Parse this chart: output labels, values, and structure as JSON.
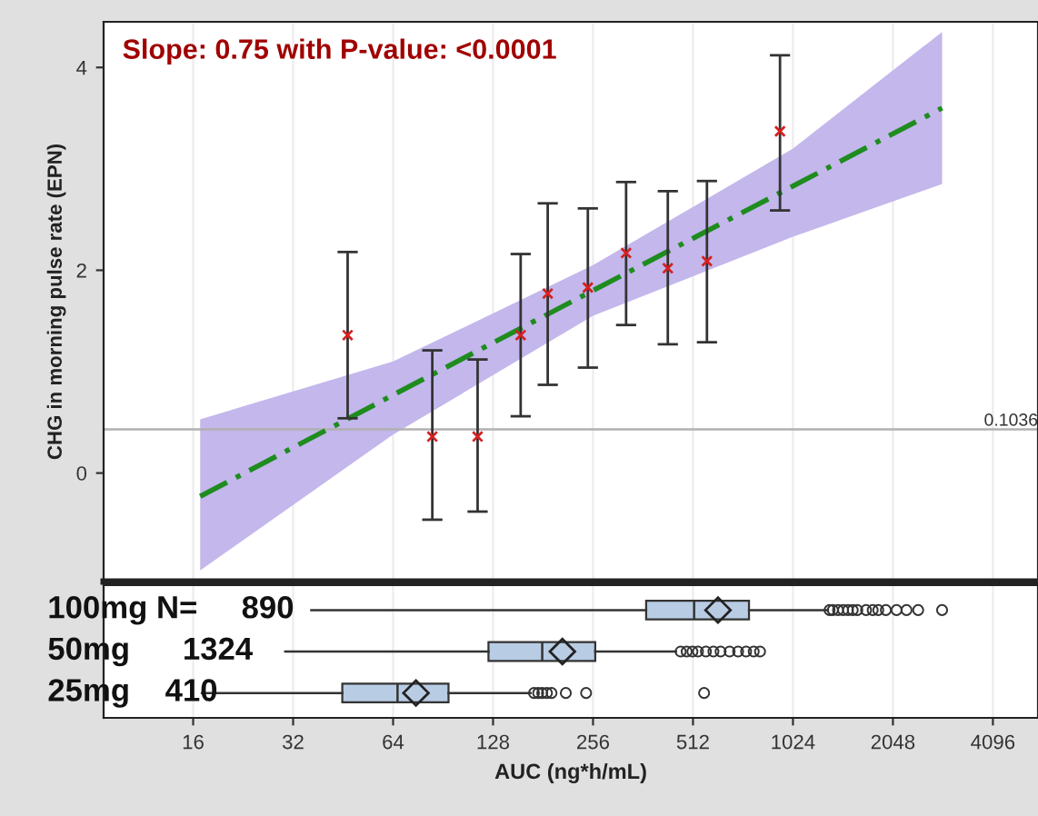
{
  "chart_data": [
    {
      "type": "scatter",
      "ylabel": "CHG in morning pulse rate (EPN)",
      "annotations": [
        "Slope: 0.75 with P-value: <0.0001",
        {
          "text": "0.1036",
          "x": 5600,
          "y": 0.43
        }
      ],
      "log": "x",
      "xlim": [
        8.6,
        5600
      ],
      "xticks": [
        16,
        32,
        64,
        128,
        256,
        512,
        1024,
        2048,
        4096
      ],
      "ylim": [
        -1.07,
        4.45
      ],
      "yticks": [
        0,
        2,
        4
      ],
      "grid": "x",
      "tick_labels": "y",
      "ref_lines": [
        {
          "axis": "y",
          "value": 0.43,
          "color": "#b0b0b0"
        }
      ],
      "series": [
        {
          "type": "line",
          "x": [
            16.8,
            64,
            256,
            1024,
            2880
          ],
          "values": [
            -0.23,
            0.77,
            1.8,
            2.83,
            3.6
          ],
          "lower": [
            -0.96,
            0.38,
            1.55,
            2.33,
            2.85
          ],
          "upper": [
            0.53,
            1.1,
            2.05,
            3.2,
            4.35
          ],
          "color": "#1e8c1e",
          "line_style": "dashed",
          "marker": "none"
        },
        {
          "type": "scatter",
          "x": [
            46.7,
            84,
            115,
            155,
            187,
            247,
            322,
            430,
            564,
            936
          ],
          "values": [
            1.36,
            0.36,
            0.36,
            1.36,
            1.77,
            1.83,
            2.17,
            2.02,
            2.09,
            3.37
          ],
          "errors": [
            [
              0.54,
              2.18
            ],
            [
              -0.46,
              1.21
            ],
            [
              -0.38,
              1.12
            ],
            [
              0.56,
              2.16
            ],
            [
              0.87,
              2.66
            ],
            [
              1.04,
              2.61
            ],
            [
              1.46,
              2.87
            ],
            [
              1.27,
              2.78
            ],
            [
              1.29,
              2.88
            ],
            [
              2.59,
              4.12
            ]
          ],
          "color": "#d62020",
          "marker": "cross"
        }
      ]
    },
    {
      "type": "box",
      "orientation": "horizontal",
      "xlabel": "AUC (ng*h/mL)",
      "log": "x",
      "xlim": [
        8.6,
        5600
      ],
      "xticks": [
        16,
        32,
        64,
        128,
        256,
        512,
        1024,
        2048,
        4096
      ],
      "grid": "x",
      "categories": [
        "100mg N=     890",
        "50mg      1324",
        "25mg    410"
      ],
      "color": "#b8cce4",
      "boxes": [
        {
          "low": 36.3,
          "q1": 370,
          "median": 516,
          "q3": 755,
          "high": 1305,
          "mean": 609,
          "outliers": [
            1320,
            1350,
            1400,
            1450,
            1500,
            1550,
            1600,
            1700,
            1780,
            1850,
            1950,
            2100,
            2250,
            2440,
            2880
          ]
        },
        {
          "low": 30.3,
          "q1": 124,
          "median": 180,
          "q3": 260,
          "high": 455,
          "mean": 207,
          "outliers": [
            470,
            490,
            510,
            530,
            560,
            590,
            620,
            660,
            700,
            740,
            780,
            815
          ]
        },
        {
          "low": 17,
          "q1": 45,
          "median": 66,
          "q3": 94,
          "high": 166,
          "mean": 75,
          "outliers": [
            170,
            175,
            180,
            186,
            192,
            212,
            244,
            553
          ]
        }
      ]
    }
  ]
}
